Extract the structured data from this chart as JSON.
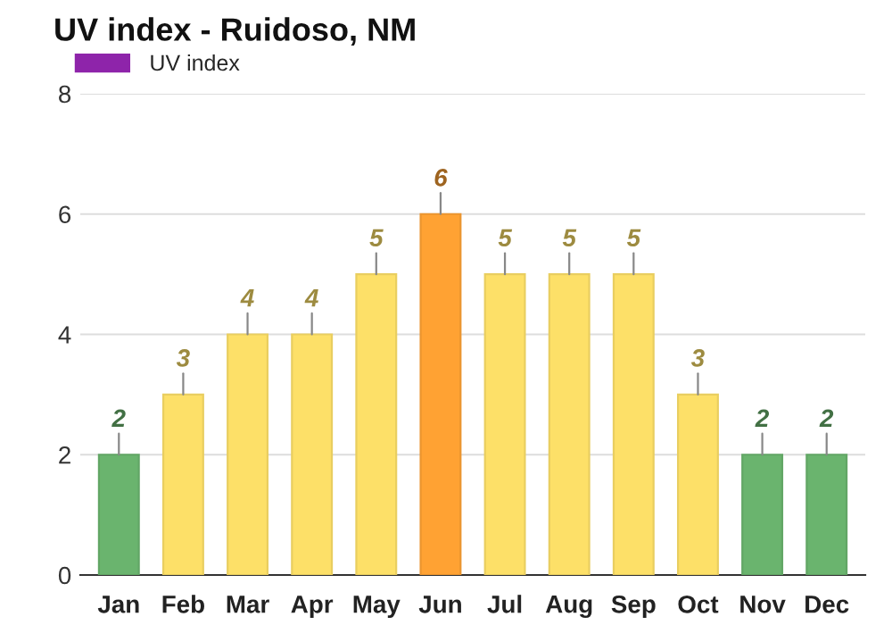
{
  "chart_data": {
    "type": "bar",
    "title": "UV index - Ruidoso, NM",
    "categories": [
      "Jan",
      "Feb",
      "Mar",
      "Apr",
      "May",
      "Jun",
      "Jul",
      "Aug",
      "Sep",
      "Oct",
      "Nov",
      "Dec"
    ],
    "series": [
      {
        "name": "UV index",
        "color": "#8e24aa",
        "values": [
          2,
          3,
          4,
          4,
          5,
          6,
          5,
          5,
          5,
          3,
          2,
          2
        ],
        "colors": [
          "#6ab46e",
          "#fde068",
          "#fde068",
          "#fde068",
          "#fde068",
          "#ffa233",
          "#fde068",
          "#fde068",
          "#fde068",
          "#fde068",
          "#6ab46e",
          "#6ab46e"
        ]
      }
    ],
    "ylim": [
      0,
      8
    ],
    "yticks": [
      0,
      2,
      4,
      6,
      8
    ],
    "grid": "y",
    "legend": "top left",
    "data_labels": true
  }
}
